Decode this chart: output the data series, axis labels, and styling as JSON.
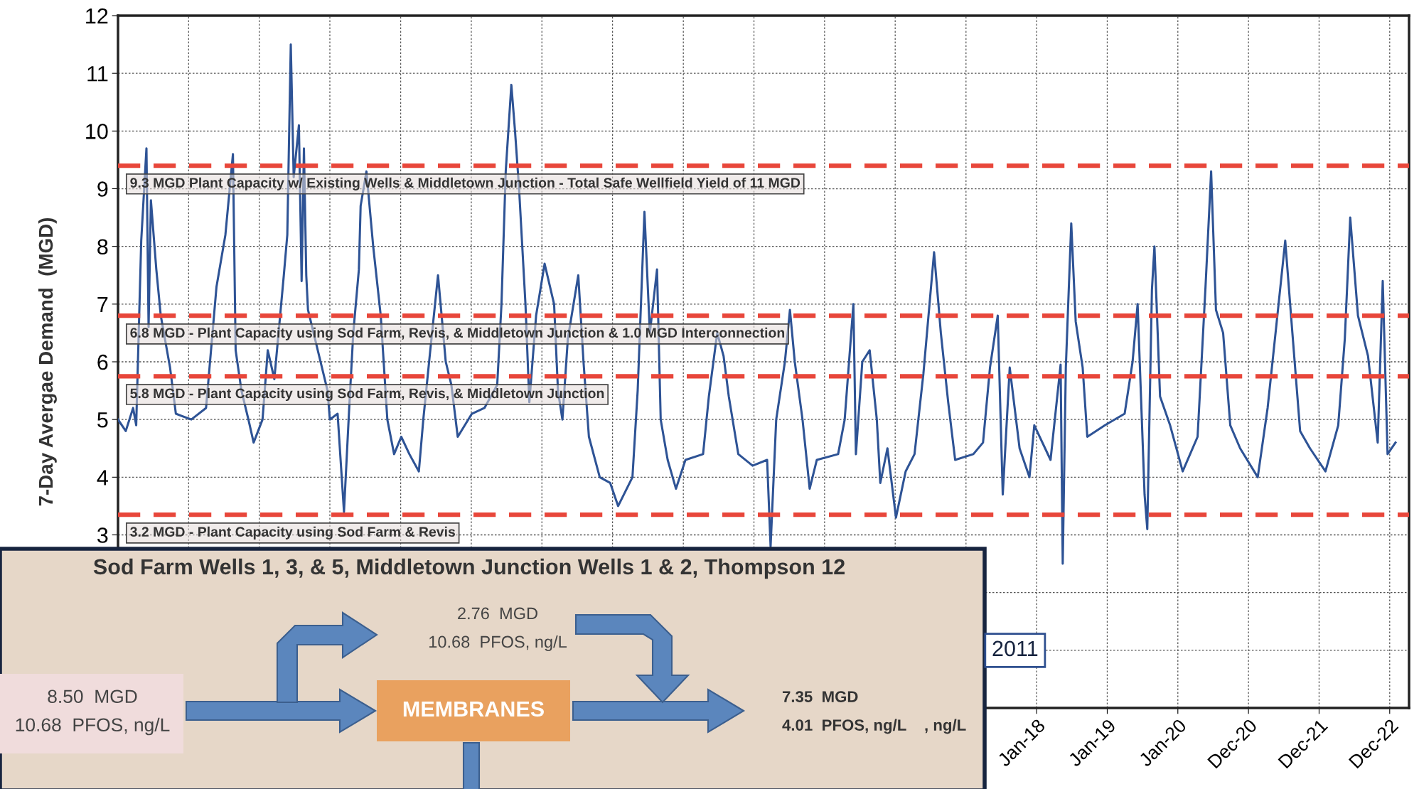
{
  "chart_data": {
    "type": "line",
    "ylabel": "7-Day Avergae Demand  (MGD)",
    "xlim": [
      "2005-01-01",
      "2023-04-10"
    ],
    "ylim": [
      0,
      12
    ],
    "xticks": [
      {
        "value": "2005-01-01",
        "label": null
      },
      {
        "value": "2006-01-01",
        "label": null
      },
      {
        "value": "2007-01-01",
        "label": null
      },
      {
        "value": "2008-01-01",
        "label": null
      },
      {
        "value": "2009-01-01",
        "label": null
      },
      {
        "value": "2010-01-01",
        "label": null
      },
      {
        "value": "2011-01-01",
        "label": null
      },
      {
        "value": "2012-01-01",
        "label": null
      },
      {
        "value": "2013-01-01",
        "label": null
      },
      {
        "value": "2014-01-01",
        "label": null
      },
      {
        "value": "2015-01-01",
        "label": null
      },
      {
        "value": "2016-01-01",
        "label": null
      },
      {
        "value": "2017-01-01",
        "label": null
      },
      {
        "value": "2018-01-01",
        "label": "Jan-18"
      },
      {
        "value": "2019-01-01",
        "label": "Jan-19"
      },
      {
        "value": "2020-01-01",
        "label": "Jan-20"
      },
      {
        "value": "2020-12-31",
        "label": "Dec-20"
      },
      {
        "value": "2021-12-31",
        "label": "Dec-21"
      },
      {
        "value": "2022-12-31",
        "label": "Dec-22"
      }
    ],
    "yticks": [
      {
        "value": 0,
        "label": null
      },
      {
        "value": 1,
        "label": null
      },
      {
        "value": 2,
        "label": null
      },
      3,
      4,
      5,
      6,
      7,
      8,
      9,
      10,
      11,
      12
    ],
    "grid": true,
    "legend": false,
    "marker": "none",
    "line_style": "solid",
    "series": [
      {
        "color": "#2e5395",
        "x": [
          "2005-01-01",
          "2005-02-10",
          "2005-03-20",
          "2005-04-05",
          "2005-05-01",
          "2005-05-28",
          "2005-06-08",
          "2005-06-20",
          "2005-07-18",
          "2005-08-10",
          "2005-09-27",
          "2005-10-27",
          "2006-01-15",
          "2006-04-01",
          "2006-05-25",
          "2006-07-10",
          "2006-08-18",
          "2006-09-01",
          "2006-10-01",
          "2006-11-06",
          "2006-12-03",
          "2007-01-18",
          "2007-02-14",
          "2007-03-20",
          "2007-05-08",
          "2007-05-26",
          "2007-06-13",
          "2007-06-28",
          "2007-07-25",
          "2007-08-08",
          "2007-08-20",
          "2007-09-01",
          "2007-09-10",
          "2007-12-20",
          "2008-01-01",
          "2008-02-10",
          "2008-03-14",
          "2008-04-10",
          "2008-05-01",
          "2008-05-30",
          "2008-06-08",
          "2008-07-08",
          "2008-08-12",
          "2008-09-20",
          "2008-10-24",
          "2008-11-28",
          "2009-01-04",
          "2009-02-15",
          "2009-04-05",
          "2009-04-28",
          "2009-05-31",
          "2009-07-13",
          "2009-08-22",
          "2009-09-20",
          "2009-10-23",
          "2010-01-04",
          "2010-03-10",
          "2010-05-15",
          "2010-06-06",
          "2010-06-28",
          "2010-07-27",
          "2010-08-15",
          "2010-09-05",
          "2010-10-08",
          "2010-10-28",
          "2010-12-02",
          "2011-01-15",
          "2011-03-05",
          "2011-03-25",
          "2011-04-17",
          "2011-05-15",
          "2011-07-08",
          "2011-08-04",
          "2011-09-01",
          "2011-10-27",
          "2011-12-20",
          "2012-01-30",
          "2012-04-13",
          "2012-05-10",
          "2012-06-14",
          "2012-07-12",
          "2012-08-18",
          "2012-09-06",
          "2012-10-12",
          "2012-11-24",
          "2013-01-12",
          "2013-04-13",
          "2013-05-13",
          "2013-06-25",
          "2013-07-28",
          "2013-08-24",
          "2013-10-12",
          "2013-12-25",
          "2014-03-10",
          "2014-03-28",
          "2014-04-26",
          "2014-06-10",
          "2014-07-06",
          "2014-07-31",
          "2014-09-09",
          "2014-10-16",
          "2014-11-22",
          "2015-03-12",
          "2015-04-15",
          "2015-05-30",
          "2015-06-12",
          "2015-07-15",
          "2015-08-22",
          "2015-09-28",
          "2015-10-16",
          "2015-11-22",
          "2016-01-05",
          "2016-02-24",
          "2016-04-10",
          "2016-05-26",
          "2016-07-20",
          "2016-08-24",
          "2016-10-01",
          "2016-11-06",
          "2017-02-08",
          "2017-03-30",
          "2017-05-05",
          "2017-06-14",
          "2017-07-10",
          "2017-08-15",
          "2017-10-05",
          "2017-11-25",
          "2017-12-20",
          "2018-03-14",
          "2018-05-05",
          "2018-05-16",
          "2018-06-01",
          "2018-06-29",
          "2018-07-22",
          "2018-08-27",
          "2018-09-20",
          "2018-12-20",
          "2019-04-01",
          "2019-05-12",
          "2019-06-07",
          "2019-07-13",
          "2019-07-27",
          "2019-08-20",
          "2019-09-02",
          "2019-10-01",
          "2019-11-22",
          "2020-01-26",
          "2020-04-12",
          "2020-05-23",
          "2020-06-21",
          "2020-07-16",
          "2020-08-22",
          "2020-09-28",
          "2020-11-18",
          "2021-02-17",
          "2021-04-09",
          "2021-05-20",
          "2021-07-09",
          "2021-08-15",
          "2021-09-24",
          "2021-11-14",
          "2022-02-02",
          "2022-04-09",
          "2022-05-13",
          "2022-06-10",
          "2022-07-20",
          "2022-09-10",
          "2022-10-30",
          "2022-11-25",
          "2022-12-20",
          "2023-01-30"
        ],
        "values": [
          5.0,
          4.8,
          5.2,
          4.9,
          8.1,
          9.7,
          6.6,
          8.8,
          7.6,
          6.8,
          5.9,
          5.1,
          5.0,
          5.2,
          7.3,
          8.2,
          9.6,
          6.2,
          5.5,
          5.0,
          4.6,
          5.0,
          6.2,
          5.7,
          7.5,
          8.2,
          11.5,
          9.2,
          10.1,
          7.4,
          9.7,
          7.5,
          6.9,
          5.5,
          5.0,
          5.1,
          3.4,
          5.2,
          6.5,
          7.6,
          8.7,
          9.3,
          8.0,
          6.8,
          5.0,
          4.4,
          4.7,
          4.4,
          4.1,
          5.0,
          6.1,
          7.5,
          6.0,
          5.6,
          4.7,
          5.1,
          5.2,
          5.6,
          7.0,
          9.3,
          10.8,
          10.0,
          9.0,
          7.0,
          5.3,
          6.8,
          7.7,
          7.0,
          5.5,
          5.0,
          6.4,
          7.5,
          6.0,
          4.7,
          4.0,
          3.9,
          3.5,
          4.0,
          5.5,
          8.6,
          6.5,
          7.6,
          5.0,
          4.3,
          3.8,
          4.3,
          4.4,
          5.4,
          6.5,
          6.1,
          5.4,
          4.4,
          4.2,
          4.3,
          2.8,
          5.0,
          6.0,
          6.9,
          6.0,
          5.0,
          3.8,
          4.3,
          4.4,
          5.0,
          7.0,
          4.4,
          6.0,
          6.2,
          5.0,
          3.9,
          4.5,
          3.3,
          4.1,
          4.4,
          5.8,
          7.9,
          6.5,
          5.3,
          4.3,
          4.4,
          4.6,
          5.9,
          6.8,
          3.7,
          5.9,
          4.5,
          4.0,
          4.9,
          4.3,
          5.95,
          2.5,
          5.9,
          8.4,
          6.7,
          5.9,
          4.7,
          4.9,
          5.1,
          6.0,
          7.0,
          3.7,
          3.1,
          7.25,
          8.0,
          5.4,
          4.9,
          4.1,
          4.7,
          7.3,
          9.3,
          6.9,
          6.5,
          4.9,
          4.5,
          4.0,
          5.2,
          6.5,
          8.1,
          6.5,
          4.8,
          4.5,
          4.1,
          4.9,
          6.4,
          8.5,
          6.8,
          6.1,
          4.6,
          7.4,
          4.4,
          4.6
        ]
      }
    ],
    "ref_lines": [
      {
        "axis": "y",
        "value": 9.4,
        "label": "9.3 MGD Plant Capacity w/ Existing Wells & Middletown Junction - Total Safe Wellfield Yield of 11 MGD",
        "color": "#e8463a",
        "line_style": "dashed"
      },
      {
        "axis": "y",
        "value": 6.8,
        "label": "6.8 MGD - Plant Capacity using Sod Farm, Revis, & Middletown Junction & 1.0 MGD Interconnection",
        "color": "#e8463a",
        "line_style": "dashed"
      },
      {
        "axis": "y",
        "value": 5.75,
        "label": "5.8 MGD - Plant Capacity using Sod Farm, Revis, & Middletown Junction",
        "color": "#e8463a",
        "line_style": "dashed"
      },
      {
        "axis": "y",
        "value": 3.35,
        "label": "3.2 MGD - Plant Capacity using Sod Farm & Revis",
        "color": "#e8463a",
        "line_style": "dashed"
      }
    ],
    "annotations": [
      "Sod Farm Wells 1, 3, & 5, Middletown Junction Wells 1 & 2, Thompson 12",
      "2.76  MGD",
      "10.68  PFOS, ng/L",
      "8.50  MGD",
      "10.68  PFOS, ng/L",
      "MEMBRANES",
      "7.35  MGD",
      "4.01  PFOS, ng/L",
      ", ng/L",
      "2011"
    ]
  }
}
